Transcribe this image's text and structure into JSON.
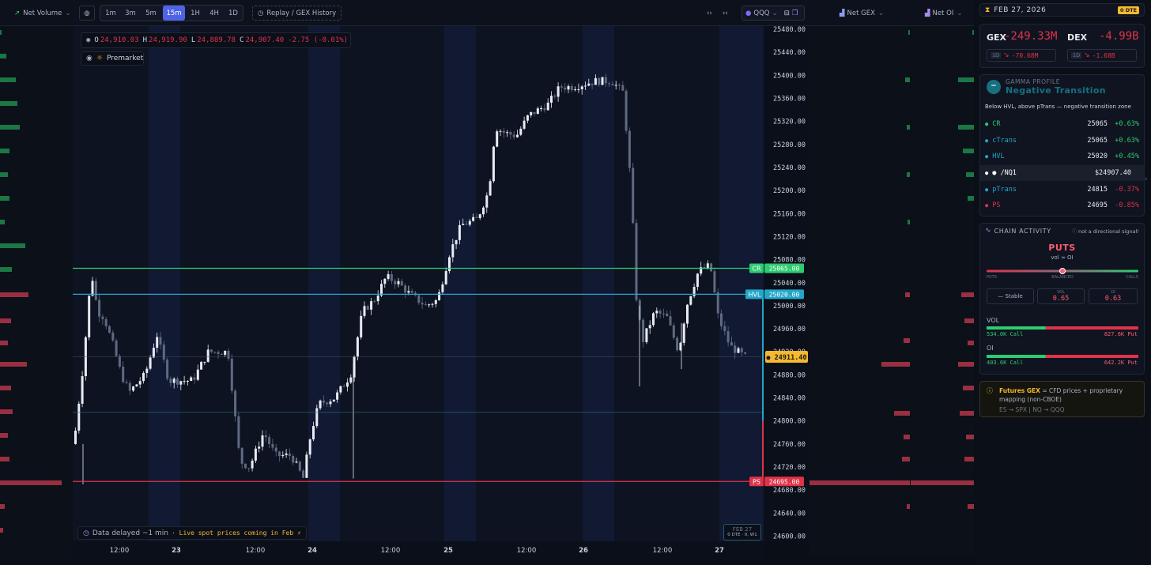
{
  "toolbar": {
    "net_volume": "Net Volume",
    "timeframes": [
      "1m",
      "3m",
      "5m",
      "15m",
      "1H",
      "4H",
      "1D"
    ],
    "active_timeframe": "15m",
    "replay": "Replay / GEX History",
    "symbol": "QQQ",
    "net_gex": "Net GEX",
    "net_oi": "Net OI"
  },
  "ohlc": {
    "o_label": "O",
    "o": "24,910.03",
    "h_label": "H",
    "h": "24,919.90",
    "l_label": "L",
    "l": "24,889.78",
    "c_label": "C",
    "c": "24,907.40",
    "change": "-2.75 (-0.01%)"
  },
  "premarket": "Premarket",
  "levels": [
    {
      "label": "CR",
      "value": "25065.00",
      "price": 25065,
      "color": "#2ecc71"
    },
    {
      "label": "HVL",
      "value": "25020.00",
      "price": 25020,
      "color": "#22a7c9"
    },
    {
      "label": "PS",
      "value": "24695.00",
      "price": 24695,
      "color": "#e0334a"
    }
  ],
  "current_price": {
    "label": "● 24911.40",
    "price": 24911.4
  },
  "yaxis_labels": [
    "25480.00",
    "25440.00",
    "25400.00",
    "25360.00",
    "25320.00",
    "25280.00",
    "25240.00",
    "25200.00",
    "25160.00",
    "25120.00",
    "25080.00",
    "25040.00",
    "25000.00",
    "24960.00",
    "24920.00",
    "24880.00",
    "24840.00",
    "24800.00",
    "24760.00",
    "24720.00",
    "24680.00",
    "24640.00",
    "24600.00"
  ],
  "xaxis_labels": [
    "12:00",
    "23",
    "12:00",
    "24",
    "12:00",
    "25",
    "12:00",
    "26",
    "12:00",
    "27"
  ],
  "delayed": {
    "text": "Data delayed ~1 min",
    "live": "· Live spot prices coming in Feb ⚡"
  },
  "date_badge": {
    "date": "FEB 27",
    "sub": "0 DTE · 0, W1"
  },
  "side": {
    "date": "FEB 27, 2026",
    "dte": "0 DTE",
    "gex_label": "GEX",
    "gex_value": "-249.33M",
    "dex_label": "DEX",
    "dex_value": "-4.99B",
    "gex_1d": "1D",
    "gex_1d_value": "-70.68M",
    "dex_1d": "1D",
    "dex_1d_value": "-1.68B",
    "gamma_profile_label": "GAMMA PROFILE",
    "gamma_profile_value": "Negative Transition",
    "gamma_desc": "Below HVL, above pTrans — negative transition zone",
    "level_rows": [
      {
        "name": "CR",
        "value": "25065",
        "pct": "+0.63%",
        "color": "#2ecc71",
        "pctColor": "#2ecc71"
      },
      {
        "name": "cTrans",
        "value": "25065",
        "pct": "+0.63%",
        "color": "#22a7c9",
        "pctColor": "#2ecc71"
      },
      {
        "name": "HVL",
        "value": "25020",
        "pct": "+0.45%",
        "color": "#22a7c9",
        "pctColor": "#2ecc71"
      },
      {
        "name": "● /NQ1",
        "value": "$24907.40",
        "pct": "",
        "color": "#ffffff",
        "pctColor": "#ffffff"
      },
      {
        "name": "pTrans",
        "value": "24815",
        "pct": "-0.37%",
        "color": "#22a7c9",
        "pctColor": "#e0334a"
      },
      {
        "name": "PS",
        "value": "24695",
        "pct": "-0.85%",
        "color": "#e0334a",
        "pctColor": "#e0334a"
      }
    ],
    "chain_activity": "CHAIN ACTIVITY",
    "not_directional": "not a directional signal!",
    "puts_big": "PUTS",
    "vol_oi_sub": "vol ≈ OI",
    "slider_left": "PUTS",
    "slider_mid": "BALANCED",
    "slider_right": "CALLS",
    "slider_pos": 0.5,
    "stable": "— Stable",
    "vol_box_label": "VOL",
    "vol_box_value": "0.65",
    "oi_box_label": "OI",
    "oi_box_value": "0.63",
    "vol_label": "VOL",
    "vol_call": "534.0K Call",
    "vol_put": "827.6K Put",
    "vol_call_frac": 0.39,
    "oi_label": "OI",
    "oi_call": "403.6K Call",
    "oi_put": "642.2K Put",
    "oi_call_frac": 0.39,
    "futures_title": "Futures GEX",
    "futures_text": "= CFD prices + proprietary mapping (non-CBOE)",
    "futures_map": "ES → SPX  |  NQ → QQQ"
  },
  "colors": {
    "up": "#e8ecf2",
    "down": "#5e6a80",
    "green": "#2ecc71",
    "red": "#e0334a",
    "teal": "#22a7c9",
    "amber": "#f5b82e"
  }
}
